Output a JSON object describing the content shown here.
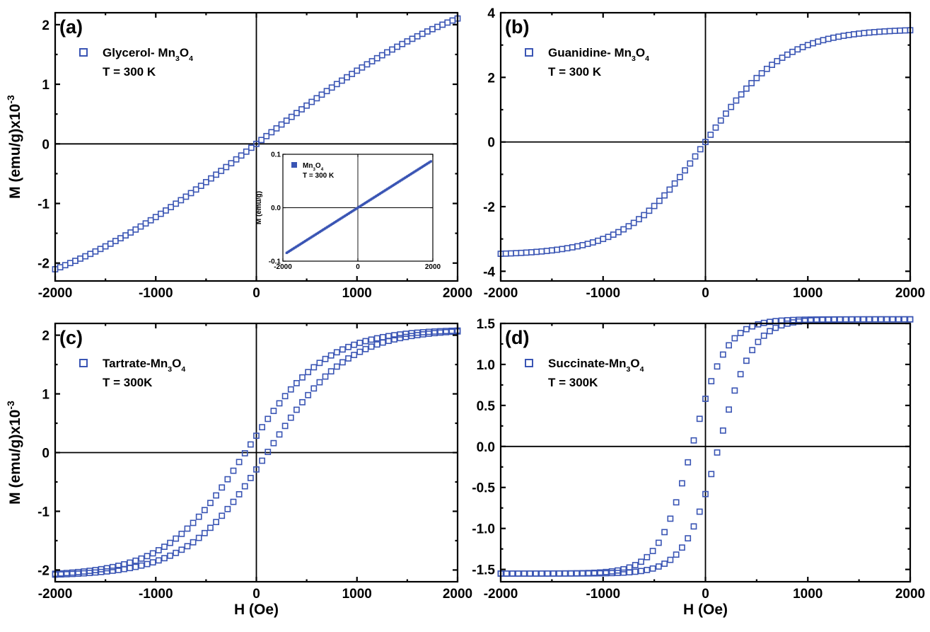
{
  "colors": {
    "marker": "#3a55b4",
    "axis": "#000000",
    "background": "#ffffff"
  },
  "chart_data": [
    {
      "type": "scatter",
      "panel_label": "(a)",
      "xlabel": "",
      "ylabel": "M (emu/g)x10",
      "ylabel_exponent": "-3",
      "xlim": [
        -2000,
        2000
      ],
      "ylim": [
        -2.3,
        2.2
      ],
      "xticks": [
        -2000,
        -1000,
        0,
        1000,
        2000
      ],
      "yticks": [
        -2,
        -1,
        0,
        1,
        2
      ],
      "yticklabels": [
        "-2",
        "-1",
        "0",
        "1",
        "2"
      ],
      "legend": {
        "name": "Glycerol- Mn",
        "sub1": "3",
        "mid": "O",
        "sub2": "4",
        "condition": "T = 300 K",
        "position": "top-left"
      },
      "series": [
        {
          "model": "tanh",
          "Ms": 3.0,
          "H0": 2300,
          "Hc": 0,
          "points": 81
        }
      ],
      "inset": {
        "type": "scatter",
        "ylabel": "M (emu/g)",
        "xlim": [
          -2000,
          2000
        ],
        "ylim": [
          -0.1,
          0.1
        ],
        "xticks": [
          -2000,
          0,
          2000
        ],
        "yticks": [
          -0.1,
          0.0,
          0.1
        ],
        "yticklabels": [
          "-0.1",
          "0.0",
          "0.1"
        ],
        "legend": {
          "name": "Mn",
          "sub1": "3",
          "mid": "O",
          "sub2": "4",
          "condition": "T = 300 K"
        },
        "series": [
          {
            "model": "linear",
            "slope": 4.45e-05,
            "x_range": [
              -1900,
              1950
            ]
          }
        ]
      }
    },
    {
      "type": "scatter",
      "panel_label": "(b)",
      "xlabel": "",
      "ylabel": "",
      "ylabel_exponent": "",
      "xlim": [
        -2000,
        2000
      ],
      "ylim": [
        -4.3,
        4.0
      ],
      "xticks": [
        -2000,
        -1000,
        0,
        1000,
        2000
      ],
      "yticks": [
        -4,
        -2,
        0,
        2,
        4
      ],
      "yticklabels": [
        "-4",
        "-2",
        "0",
        "2",
        "4"
      ],
      "legend": {
        "name": "Guanidine- Mn",
        "sub1": "3",
        "mid": "O",
        "sub2": "4",
        "condition": "T = 300 K",
        "position": "top-left"
      },
      "series": [
        {
          "model": "tanh",
          "Ms": 3.5,
          "H0": 780,
          "Hc": 0,
          "points": 81
        }
      ]
    },
    {
      "type": "scatter",
      "panel_label": "(c)",
      "xlabel": "H (Oe)",
      "ylabel": "M (emu/g)x10",
      "ylabel_exponent": "-3",
      "xlim": [
        -2000,
        2000
      ],
      "ylim": [
        -2.2,
        2.2
      ],
      "xticks": [
        -2000,
        -1000,
        0,
        1000,
        2000
      ],
      "yticks": [
        -2,
        -1,
        0,
        1,
        2
      ],
      "yticklabels": [
        "-2",
        "-1",
        "0",
        "1",
        "2"
      ],
      "legend": {
        "name": "Tartrate-Mn",
        "sub1": "3",
        "mid": "O",
        "sub2": "4",
        "condition": "T = 300K",
        "position": "top-left"
      },
      "series": [
        {
          "model": "loop",
          "Ms": 2.1,
          "H0": 800,
          "Hc": 110,
          "points": 71
        }
      ]
    },
    {
      "type": "scatter",
      "panel_label": "(d)",
      "xlabel": "H (Oe)",
      "ylabel": "",
      "ylabel_exponent": "",
      "xlim": [
        -2000,
        2000
      ],
      "ylim": [
        -1.65,
        1.5
      ],
      "xticks": [
        -2000,
        -1000,
        0,
        1000,
        2000
      ],
      "yticks": [
        -1.5,
        -1.0,
        -0.5,
        0.0,
        0.5,
        1.0,
        1.5
      ],
      "yticklabels": [
        "-1.5",
        "-1.0",
        "-0.5",
        "0.0",
        "0.5",
        "1.0",
        "1.5"
      ],
      "legend": {
        "name": "Succinate-Mn",
        "sub1": "3",
        "mid": "O",
        "sub2": "4",
        "condition": "T = 300K",
        "position": "top-left"
      },
      "series": [
        {
          "model": "loop",
          "Ms": 1.55,
          "H0": 330,
          "Hc": 130,
          "points": 71
        }
      ]
    }
  ]
}
